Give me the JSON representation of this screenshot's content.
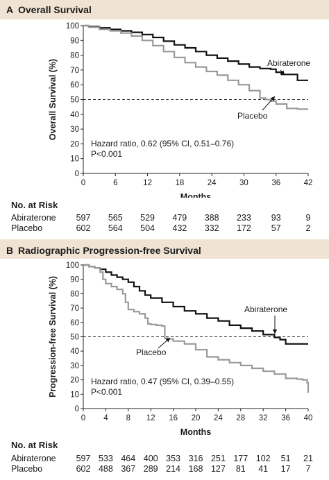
{
  "chart_data": [
    {
      "type": "line",
      "panel_letter": "A",
      "title": "Overall Survival",
      "xlabel": "Months",
      "ylabel": "Overall Survival (%)",
      "xlim": [
        0,
        42
      ],
      "ylim": [
        0,
        100
      ],
      "x_ticks": [
        0,
        6,
        12,
        18,
        24,
        30,
        36,
        42
      ],
      "y_ticks": [
        0,
        10,
        20,
        30,
        40,
        50,
        60,
        70,
        80,
        90,
        100
      ],
      "reference_line": 50,
      "annotations": {
        "hr_text": "Hazard ratio, 0.62 (95% CI, 0.51–0.76)",
        "p_text": "P<0.001"
      },
      "series": [
        {
          "name": "Abiraterone",
          "color": "#111111",
          "x": [
            0,
            1,
            3,
            5,
            7,
            9,
            11,
            13,
            15,
            17,
            19,
            21,
            23,
            25,
            27,
            29,
            31,
            33,
            35,
            36,
            37,
            39,
            40,
            42
          ],
          "y": [
            100,
            99.5,
            98.5,
            97.5,
            96.5,
            95.5,
            94,
            92,
            89.5,
            87,
            85,
            82.5,
            80,
            78,
            76,
            74,
            72,
            71,
            70.5,
            68.5,
            67,
            67,
            63,
            63
          ]
        },
        {
          "name": "Placebo",
          "color": "#999999",
          "x": [
            0,
            1,
            3,
            5,
            7,
            9,
            11,
            13,
            15,
            17,
            19,
            21,
            23,
            25,
            27,
            29,
            31,
            33,
            34,
            35,
            36,
            38,
            40,
            42
          ],
          "y": [
            100,
            99,
            97.5,
            96.5,
            95,
            93,
            90,
            86.5,
            82.5,
            78.5,
            75,
            72,
            69,
            66.5,
            63,
            60,
            56,
            51,
            50,
            49,
            47,
            44,
            43.5,
            43.5
          ]
        }
      ],
      "series_labels": {
        "abiraterone": "Abiraterone",
        "placebo": "Placebo"
      },
      "risk_table": {
        "heading": "No. at Risk",
        "rows": [
          {
            "label": "Abiraterone",
            "values": [
              "597",
              "565",
              "529",
              "479",
              "388",
              "233",
              "93",
              "9"
            ]
          },
          {
            "label": "Placebo",
            "values": [
              "602",
              "564",
              "504",
              "432",
              "332",
              "172",
              "57",
              "2"
            ]
          }
        ]
      }
    },
    {
      "type": "line",
      "panel_letter": "B",
      "title": "Radiographic Progression-free Survival",
      "xlabel": "Months",
      "ylabel": "Progression-free Survival (%)",
      "xlim": [
        0,
        40
      ],
      "ylim": [
        0,
        100
      ],
      "x_ticks": [
        0,
        4,
        8,
        12,
        16,
        20,
        24,
        28,
        32,
        36,
        40
      ],
      "y_ticks": [
        0,
        10,
        20,
        30,
        40,
        50,
        60,
        70,
        80,
        90,
        100
      ],
      "reference_line": 50,
      "annotations": {
        "hr_text": "Hazard ratio, 0.47 (95% CI, 0.39–0.55)",
        "p_text": "P<0.001"
      },
      "series": [
        {
          "name": "Abiraterone",
          "color": "#111111",
          "x": [
            0,
            1,
            2,
            3,
            4,
            5,
            6,
            7,
            8,
            9,
            10,
            11,
            12,
            14,
            16,
            18,
            20,
            22,
            24,
            26,
            28,
            30,
            32,
            34,
            35,
            36,
            40
          ],
          "y": [
            100,
            99,
            98,
            97,
            95,
            93,
            91.5,
            90,
            88,
            85,
            82,
            79,
            77,
            74,
            71,
            68,
            66,
            63,
            61,
            58,
            56,
            54,
            51.5,
            49.5,
            48,
            45,
            45
          ]
        },
        {
          "name": "Placebo",
          "color": "#999999",
          "x": [
            0,
            1,
            2,
            3,
            3.5,
            4,
            5,
            6,
            7,
            7.5,
            8,
            9,
            10,
            11,
            11.5,
            12,
            13,
            14,
            14.5,
            15,
            16,
            18,
            20,
            22,
            24,
            26,
            28,
            30,
            32,
            34,
            36,
            38,
            39,
            39.8,
            40
          ],
          "y": [
            100,
            99,
            98,
            95,
            90,
            87,
            85,
            83,
            80,
            74,
            69,
            67.5,
            66,
            63,
            59,
            58.5,
            58,
            57.5,
            49,
            48.5,
            47,
            45,
            41,
            36,
            34,
            32,
            30,
            28,
            26,
            24,
            21,
            20.5,
            20,
            18,
            11
          ]
        }
      ],
      "series_labels": {
        "abiraterone": "Abiraterone",
        "placebo": "Placebo"
      },
      "risk_table": {
        "heading": "No. at Risk",
        "rows": [
          {
            "label": "Abiraterone",
            "values": [
              "597",
              "533",
              "464",
              "400",
              "353",
              "316",
              "251",
              "177",
              "102",
              "51",
              "21"
            ]
          },
          {
            "label": "Placebo",
            "values": [
              "602",
              "488",
              "367",
              "289",
              "214",
              "168",
              "127",
              "81",
              "41",
              "17",
              "7"
            ]
          }
        ]
      }
    }
  ]
}
